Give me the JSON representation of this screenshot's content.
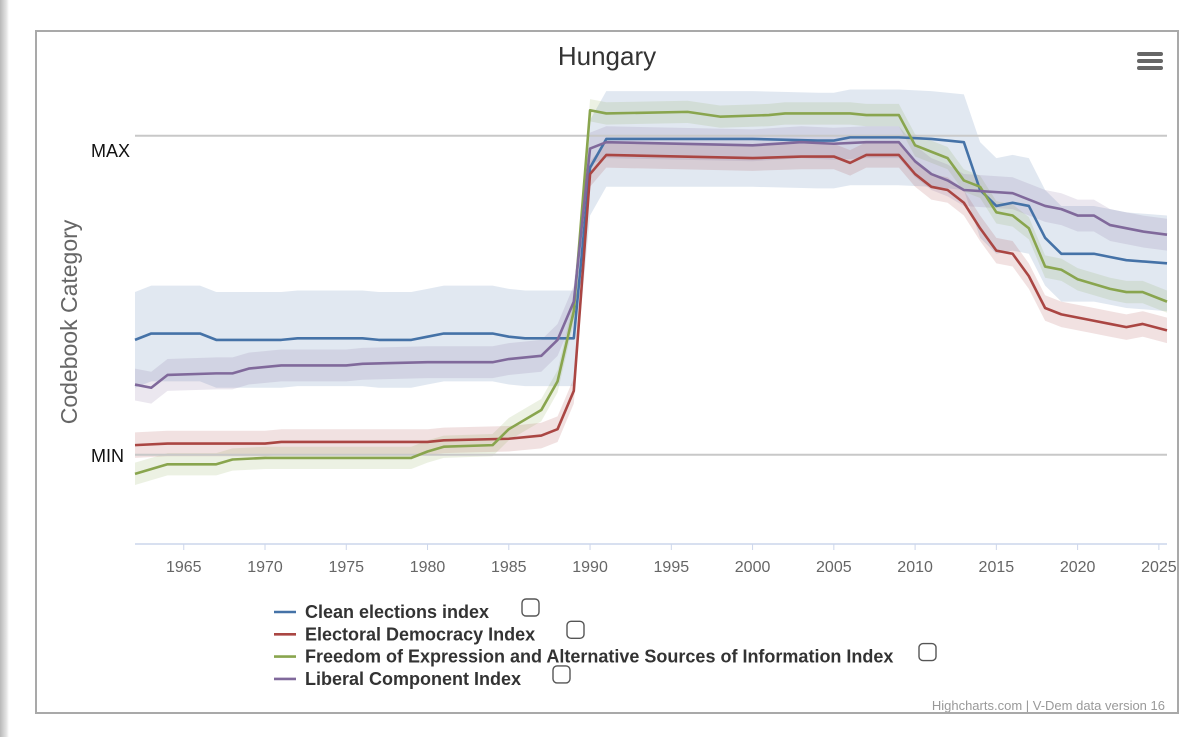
{
  "chart_data": {
    "type": "line",
    "title": "Hungary",
    "ylabel": "Codebook Category",
    "category_labels": {
      "max": "MAX",
      "min": "MIN"
    },
    "xlim": [
      1962,
      2025.5
    ],
    "ylim": [
      -0.28,
      1.2
    ],
    "x_ticks": [
      1965,
      1970,
      1975,
      1980,
      1985,
      1990,
      1995,
      2000,
      2005,
      2010,
      2015,
      2020,
      2025
    ],
    "credits": "Highcharts.com | V-Dem data version 16",
    "series": [
      {
        "name": "Clean elections index",
        "color": "#4572a7",
        "band": 0.15,
        "points": [
          [
            1962,
            0.36
          ],
          [
            1963,
            0.38
          ],
          [
            1966,
            0.38
          ],
          [
            1967,
            0.36
          ],
          [
            1971,
            0.36
          ],
          [
            1972,
            0.365
          ],
          [
            1976,
            0.365
          ],
          [
            1977,
            0.36
          ],
          [
            1979,
            0.36
          ],
          [
            1980,
            0.37
          ],
          [
            1981,
            0.38
          ],
          [
            1984,
            0.38
          ],
          [
            1985,
            0.37
          ],
          [
            1986,
            0.365
          ],
          [
            1989,
            0.365
          ],
          [
            1990,
            0.9
          ],
          [
            1991,
            0.99
          ],
          [
            2000,
            0.99
          ],
          [
            2004,
            0.985
          ],
          [
            2005,
            0.985
          ],
          [
            2006,
            0.995
          ],
          [
            2009,
            0.995
          ],
          [
            2011,
            0.99
          ],
          [
            2012,
            0.985
          ],
          [
            2013,
            0.98
          ],
          [
            2014,
            0.83
          ],
          [
            2015,
            0.78
          ],
          [
            2016,
            0.79
          ],
          [
            2017,
            0.78
          ],
          [
            2018,
            0.68
          ],
          [
            2019,
            0.63
          ],
          [
            2021,
            0.63
          ],
          [
            2022,
            0.62
          ],
          [
            2023,
            0.61
          ],
          [
            2025.5,
            0.6
          ]
        ]
      },
      {
        "name": "Electoral Democracy Index",
        "color": "#aa4643",
        "band": 0.04,
        "points": [
          [
            1962,
            0.03
          ],
          [
            1964,
            0.035
          ],
          [
            1970,
            0.035
          ],
          [
            1971,
            0.04
          ],
          [
            1980,
            0.04
          ],
          [
            1981,
            0.045
          ],
          [
            1985,
            0.05
          ],
          [
            1987,
            0.06
          ],
          [
            1988,
            0.08
          ],
          [
            1989,
            0.2
          ],
          [
            1990,
            0.88
          ],
          [
            1991,
            0.94
          ],
          [
            2000,
            0.93
          ],
          [
            2003,
            0.935
          ],
          [
            2005,
            0.935
          ],
          [
            2006,
            0.915
          ],
          [
            2007,
            0.94
          ],
          [
            2009,
            0.94
          ],
          [
            2010,
            0.88
          ],
          [
            2011,
            0.84
          ],
          [
            2012,
            0.83
          ],
          [
            2013,
            0.79
          ],
          [
            2014,
            0.71
          ],
          [
            2015,
            0.64
          ],
          [
            2016,
            0.63
          ],
          [
            2017,
            0.56
          ],
          [
            2018,
            0.46
          ],
          [
            2019,
            0.44
          ],
          [
            2021,
            0.42
          ],
          [
            2022,
            0.41
          ],
          [
            2023,
            0.4
          ],
          [
            2024,
            0.41
          ],
          [
            2025.5,
            0.39
          ]
        ]
      },
      {
        "name": "Freedom of Expression and Alternative Sources of Information Index",
        "color": "#89a54e",
        "band": 0.035,
        "points": [
          [
            1962,
            -0.06
          ],
          [
            1964,
            -0.03
          ],
          [
            1967,
            -0.03
          ],
          [
            1968,
            -0.015
          ],
          [
            1970,
            -0.01
          ],
          [
            1979,
            -0.01
          ],
          [
            1980,
            0.01
          ],
          [
            1981,
            0.025
          ],
          [
            1984,
            0.03
          ],
          [
            1985,
            0.08
          ],
          [
            1987,
            0.14
          ],
          [
            1988,
            0.23
          ],
          [
            1989,
            0.45
          ],
          [
            1990,
            1.08
          ],
          [
            1991,
            1.07
          ],
          [
            1996,
            1.075
          ],
          [
            1998,
            1.06
          ],
          [
            2001,
            1.065
          ],
          [
            2002,
            1.07
          ],
          [
            2006,
            1.07
          ],
          [
            2007,
            1.065
          ],
          [
            2009,
            1.065
          ],
          [
            2010,
            0.97
          ],
          [
            2011,
            0.95
          ],
          [
            2012,
            0.93
          ],
          [
            2013,
            0.86
          ],
          [
            2014,
            0.84
          ],
          [
            2015,
            0.76
          ],
          [
            2016,
            0.75
          ],
          [
            2017,
            0.71
          ],
          [
            2018,
            0.59
          ],
          [
            2019,
            0.58
          ],
          [
            2020,
            0.55
          ],
          [
            2022,
            0.52
          ],
          [
            2023,
            0.51
          ],
          [
            2024,
            0.51
          ],
          [
            2025.5,
            0.48
          ]
        ]
      },
      {
        "name": "Liberal Component Index",
        "color": "#80699b",
        "band": 0.05,
        "points": [
          [
            1962,
            0.22
          ],
          [
            1963,
            0.21
          ],
          [
            1964,
            0.25
          ],
          [
            1967,
            0.255
          ],
          [
            1968,
            0.255
          ],
          [
            1969,
            0.27
          ],
          [
            1971,
            0.28
          ],
          [
            1975,
            0.28
          ],
          [
            1976,
            0.285
          ],
          [
            1980,
            0.29
          ],
          [
            1984,
            0.29
          ],
          [
            1985,
            0.3
          ],
          [
            1987,
            0.31
          ],
          [
            1988,
            0.36
          ],
          [
            1989,
            0.48
          ],
          [
            1990,
            0.96
          ],
          [
            1991,
            0.98
          ],
          [
            2000,
            0.97
          ],
          [
            2003,
            0.98
          ],
          [
            2005,
            0.975
          ],
          [
            2007,
            0.98
          ],
          [
            2009,
            0.98
          ],
          [
            2010,
            0.92
          ],
          [
            2011,
            0.88
          ],
          [
            2012,
            0.86
          ],
          [
            2013,
            0.83
          ],
          [
            2016,
            0.82
          ],
          [
            2017,
            0.8
          ],
          [
            2018,
            0.78
          ],
          [
            2019,
            0.77
          ],
          [
            2020,
            0.75
          ],
          [
            2021,
            0.75
          ],
          [
            2022,
            0.72
          ],
          [
            2024,
            0.7
          ],
          [
            2025.5,
            0.69
          ]
        ]
      }
    ]
  }
}
